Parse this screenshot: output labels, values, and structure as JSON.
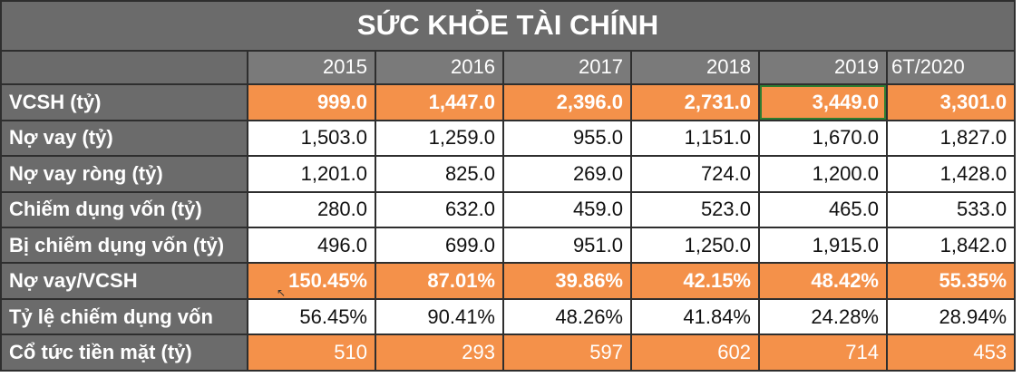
{
  "title": "SỨC KHỎE TÀI CHÍNH",
  "years": [
    "2015",
    "2016",
    "2017",
    "2018",
    "2019",
    "6T/2020"
  ],
  "rows": [
    {
      "label": "VCSH (tỷ)",
      "values": [
        "999.0",
        "1,447.0",
        "2,396.0",
        "2,731.0",
        "3,449.0",
        "3,301.0"
      ]
    },
    {
      "label": "Nợ vay (tỷ)",
      "values": [
        "1,503.0",
        "1,259.0",
        "955.0",
        "1,151.0",
        "1,670.0",
        "1,827.0"
      ]
    },
    {
      "label": "Nợ vay ròng (tỷ)",
      "values": [
        "1,201.0",
        "825.0",
        "269.0",
        "724.0",
        "1,200.0",
        "1,428.0"
      ]
    },
    {
      "label": "Chiếm dụng vốn (tỷ)",
      "values": [
        "280.0",
        "632.0",
        "459.0",
        "523.0",
        "465.0",
        "533.0"
      ]
    },
    {
      "label": "Bị chiếm dụng vốn (tỷ)",
      "values": [
        "496.0",
        "699.0",
        "951.0",
        "1,250.0",
        "1,915.0",
        "1,842.0"
      ]
    },
    {
      "label": "Nợ vay/VCSH",
      "values": [
        "150.45%",
        "87.01%",
        "39.86%",
        "42.15%",
        "48.42%",
        "55.35%"
      ]
    },
    {
      "label": "Tỷ lệ chiếm dụng vốn",
      "values": [
        "56.45%",
        "90.41%",
        "48.26%",
        "41.84%",
        "24.28%",
        "28.94%"
      ]
    },
    {
      "label": "Cổ tức tiền mặt (tỷ)",
      "values": [
        "510",
        "293",
        "597",
        "602",
        "714",
        "453"
      ]
    }
  ],
  "colors": {
    "header_gray": "#6b6b6b",
    "highlight_orange": "#f4914a",
    "selection_green": "#2e7d32"
  }
}
